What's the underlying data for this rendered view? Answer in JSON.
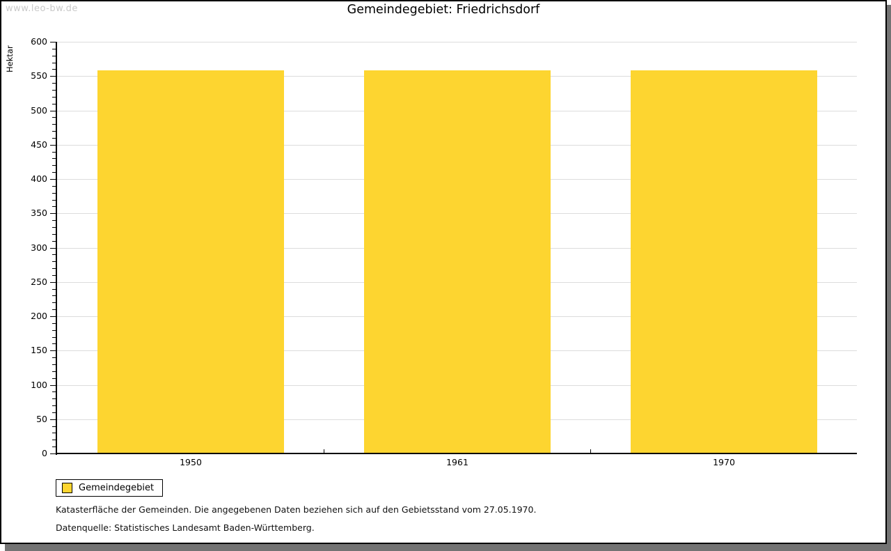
{
  "watermark": "www.leo-bw.de",
  "chart_data": {
    "type": "bar",
    "title": "Gemeindegebiet: Friedrichsdorf",
    "ylabel": "Hektar",
    "xlabel": "",
    "categories": [
      "1950",
      "1961",
      "1970"
    ],
    "series": [
      {
        "name": "Gemeindegebiet",
        "values": [
          557,
          557,
          557
        ],
        "color": "#fdd530"
      }
    ],
    "ylim": [
      0,
      600
    ],
    "ytick_step": 50,
    "yminor_step": 10,
    "grid": "horizontal-major",
    "legend_position": "bottom-left"
  },
  "footer": {
    "line1": "Katasterfläche der Gemeinden. Die angegebenen Daten beziehen sich auf den Gebietsstand vom 27.05.1970.",
    "line2": "Datenquelle: Statistisches Landesamt Baden-Württemberg."
  },
  "colors": {
    "bar": "#fdd530",
    "grid": "#dcdcdc",
    "axis": "#000000",
    "watermark": "#c9c9c9",
    "frame_border": "#000000",
    "shadow": "#737373"
  }
}
